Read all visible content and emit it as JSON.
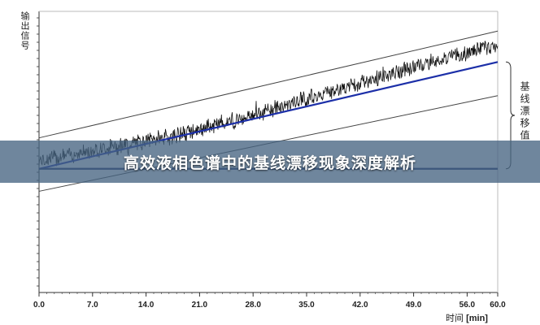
{
  "banner": {
    "title": "高效液相色谱中的基线漂移现象深度解析"
  },
  "colors": {
    "signal": "#111111",
    "baseline_fit": "#1c2fa8",
    "envelope": "#444444",
    "axis": "#333333",
    "banner_bg": "#46647f"
  },
  "chart_data": {
    "type": "line",
    "title": "",
    "ylabel": "输出信号",
    "xlabel": "时间",
    "xunit": "[min]",
    "annotation": "基线漂移值",
    "xlim": [
      0,
      60
    ],
    "ylim": [
      0,
      100
    ],
    "xticks": [
      "0.0",
      "7.0",
      "14.0",
      "21.0",
      "28.0",
      "35.0",
      "42.0",
      "49.0",
      "56.0",
      "60.0"
    ],
    "xtick_values": [
      0,
      7,
      14,
      21,
      28,
      35,
      42,
      49,
      56,
      60
    ],
    "series": [],
    "signal": {
      "x": [
        0,
        10,
        20,
        30,
        40,
        50,
        60
      ],
      "y": [
        47,
        52,
        57,
        65,
        73,
        81,
        88
      ],
      "noise": 2.5
    },
    "baseline_fit": {
      "x": [
        0,
        60
      ],
      "y": [
        44,
        82
      ]
    },
    "upper_envelope": {
      "x": [
        0,
        60
      ],
      "y": [
        55,
        93
      ]
    },
    "lower_envelope": {
      "x": [
        0,
        60
      ],
      "y": [
        36,
        70
      ]
    },
    "flat_baseline": {
      "x": [
        0,
        60
      ],
      "y": [
        44,
        44
      ]
    },
    "grid": false,
    "legend": "none"
  }
}
